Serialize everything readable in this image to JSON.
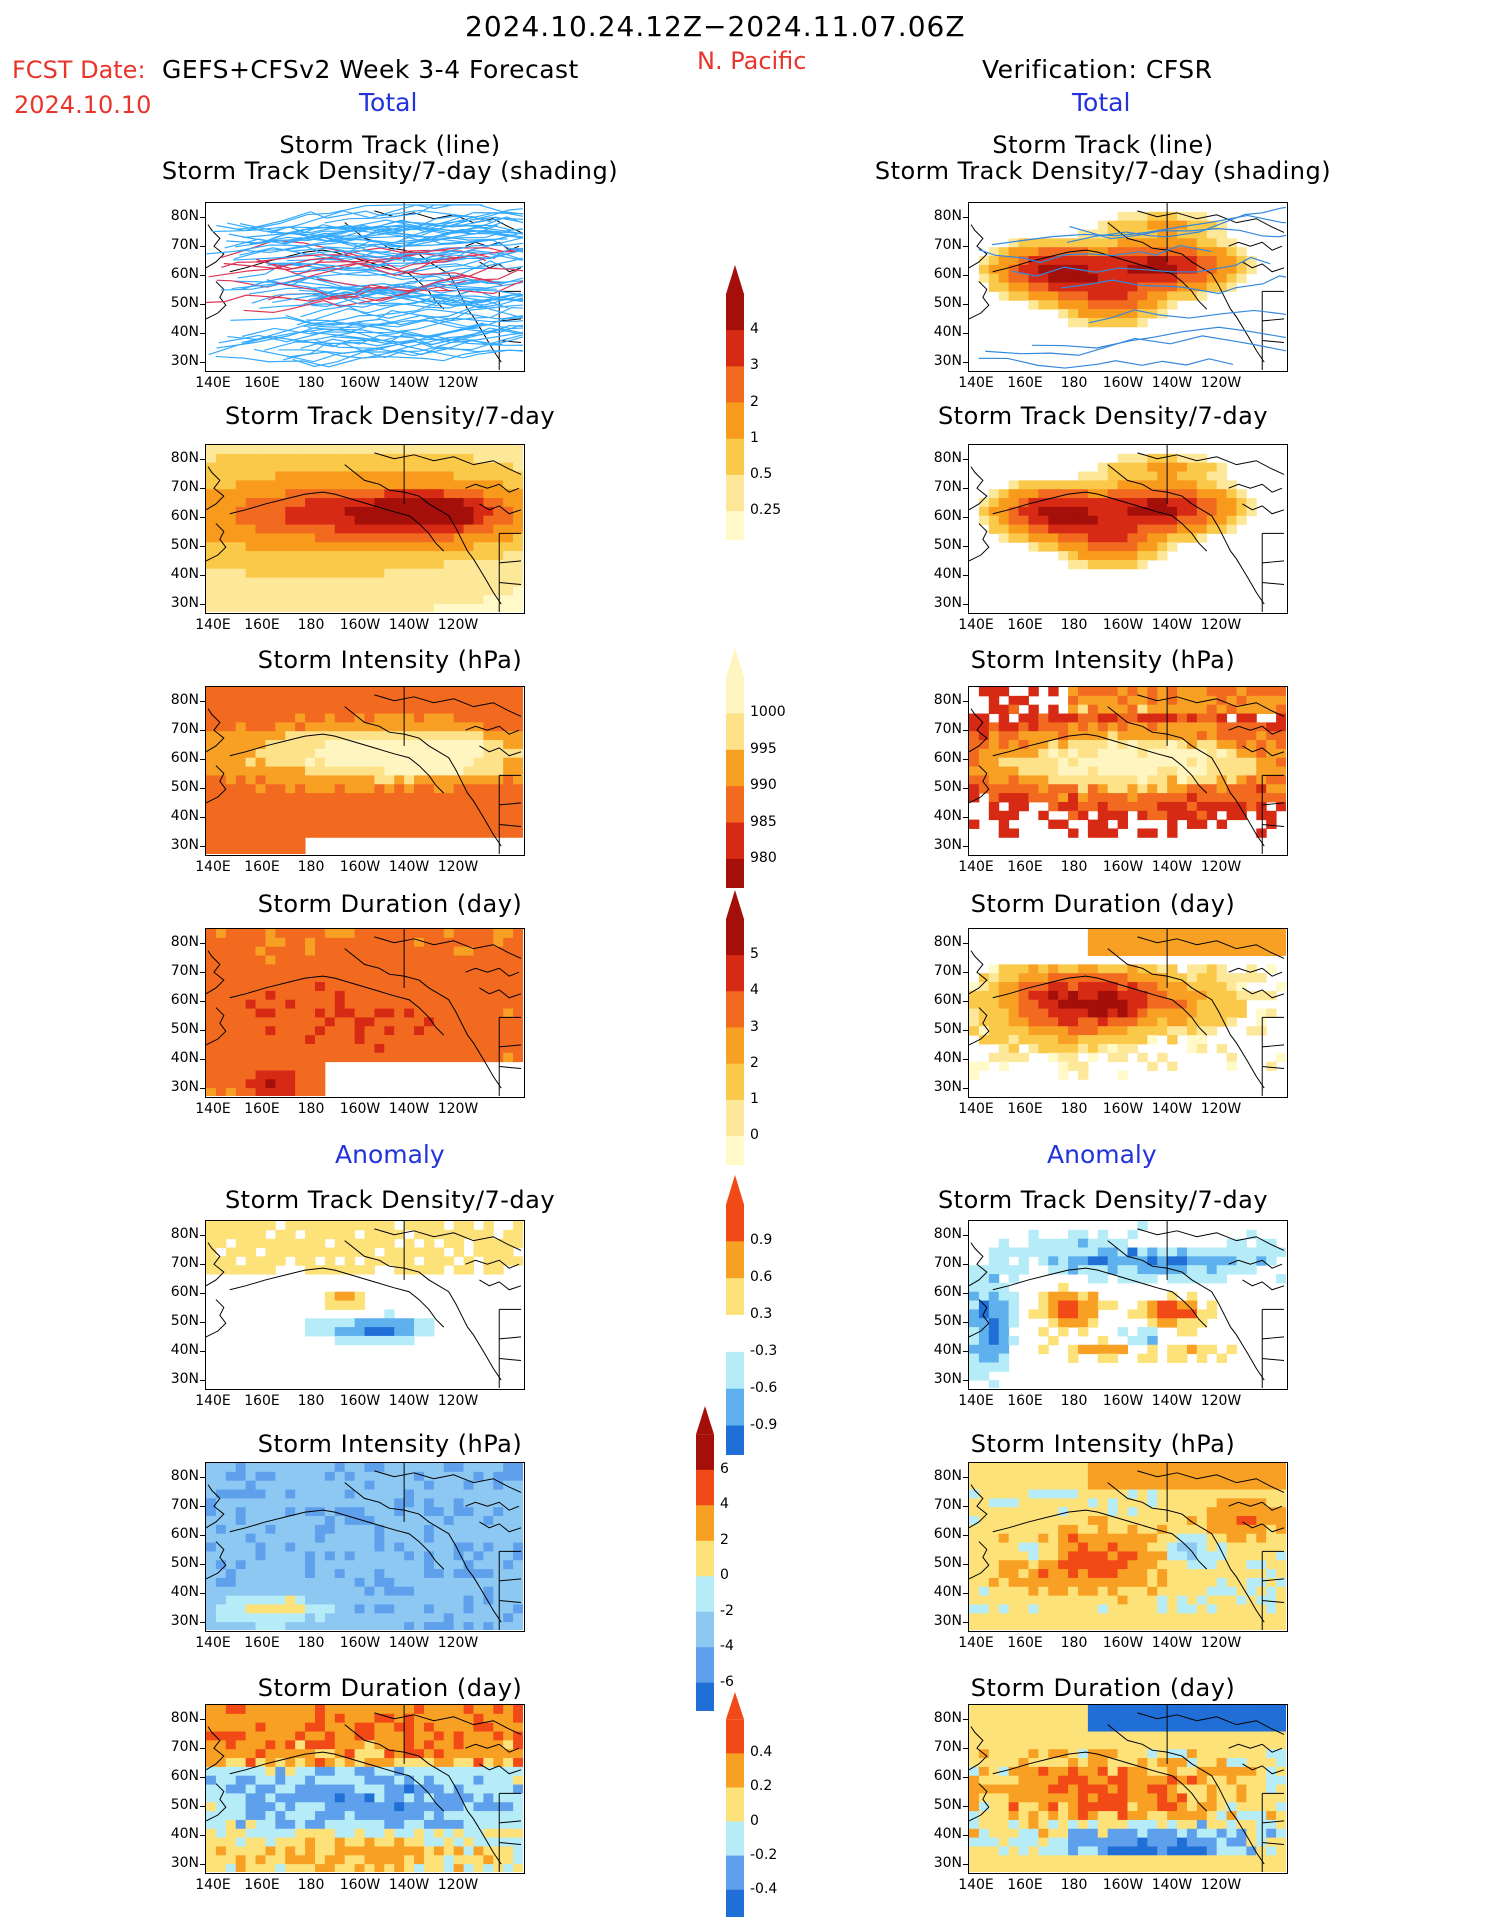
{
  "header": {
    "period": "2024.10.24.12Z−2024.11.07.06Z",
    "fcst_label": "FCST Date:",
    "model_label": "GEFS+CFSv2 Week 3-4 Forecast",
    "fcst_date": "2024.10.10",
    "region": "N. Pacific",
    "verification": "Verification: CFSR",
    "total_left": "Total",
    "total_right": "Total",
    "anomaly_left": "Anomaly",
    "anomaly_right": "Anomaly"
  },
  "titles": {
    "track_line": "Storm Track (line)",
    "track_shading": "Storm Track Density/7-day (shading)",
    "density": "Storm Track Density/7-day",
    "intensity": "Storm Intensity (hPa)",
    "duration": "Storm Duration (day)"
  },
  "axes": {
    "lat": [
      "80N",
      "70N",
      "60N",
      "50N",
      "40N",
      "30N"
    ],
    "lon": [
      "140E",
      "160E",
      "180",
      "160W",
      "140W",
      "120W"
    ]
  },
  "colorbars": {
    "density_total": {
      "labels": [
        "4",
        "3",
        "2",
        "1",
        "0.5",
        "0.25"
      ],
      "colors": [
        "#a50f0a",
        "#d72a14",
        "#f26a1f",
        "#f89a1c",
        "#fbc94a",
        "#fde89a",
        "#fffac8"
      ]
    },
    "intensity_total": {
      "labels": [
        "1000",
        "995",
        "990",
        "985",
        "980"
      ],
      "colors": [
        "#fff5c0",
        "#fde28a",
        "#f8a023",
        "#f26a1f",
        "#d72a14",
        "#a50f0a"
      ]
    },
    "duration_total": {
      "labels": [
        "5",
        "4",
        "3",
        "2",
        "1",
        "0"
      ],
      "colors": [
        "#a50f0a",
        "#d72a14",
        "#f26a1f",
        "#f8a023",
        "#fbc94a",
        "#fde89a",
        "#fffac8"
      ]
    },
    "density_anom": {
      "labels": [
        "0.9",
        "0.6",
        "0.3",
        "-0.3",
        "-0.6",
        "-0.9"
      ],
      "colors": [
        "#f24a17",
        "#f8a023",
        "#fde27a",
        "#ffffff",
        "#b5ecf8",
        "#5fb1ee",
        "#1f6fd6"
      ]
    },
    "intensity_anom": {
      "labels": [
        "6",
        "4",
        "2",
        "0",
        "-2",
        "-4",
        "-6"
      ],
      "colors": [
        "#a50f0a",
        "#f24a17",
        "#f8a023",
        "#fde27a",
        "#b5ecf8",
        "#8cc8f2",
        "#5fa0ec",
        "#1f6fd6"
      ]
    },
    "duration_anom": {
      "labels": [
        "0.4",
        "0.2",
        "0",
        "-0.2",
        "-0.4"
      ],
      "colors": [
        "#f24a17",
        "#f8a023",
        "#fde27a",
        "#b5ecf8",
        "#5fa0ec",
        "#1f6fd6"
      ]
    }
  },
  "colors": {
    "track_forecast": "#33aaff",
    "track_verif": "#3388dd",
    "track_dense": "#dd3355"
  }
}
